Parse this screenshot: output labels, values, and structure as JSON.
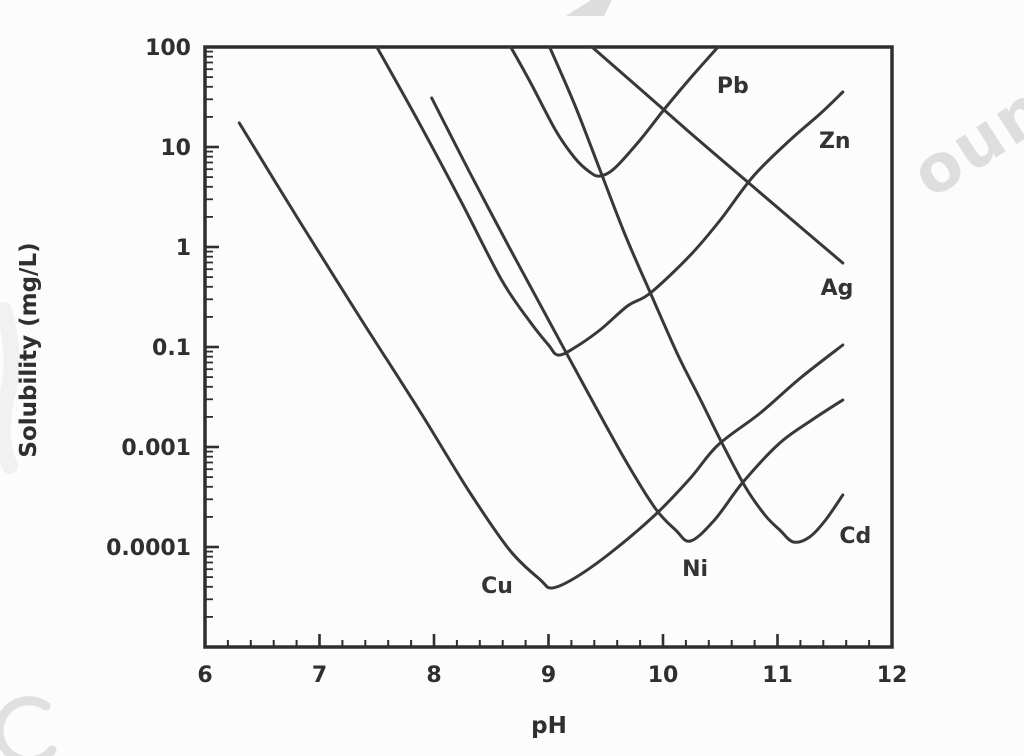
{
  "figure": {
    "background": "#fcfcfc",
    "line_color": "#383838",
    "axis_color": "#2f2f2f",
    "text_color": "#2f2f2f"
  },
  "watermark": {
    "text": "oun",
    "color": "rgba(70,70,70,0.16)",
    "description": "faint diagonal watermark letter fragments along image edges"
  },
  "chart_data": {
    "type": "line",
    "title": "",
    "xlabel": "pH",
    "ylabel": "Solubility (mg/L)",
    "grid": false,
    "legend_position": "inline-curve-labels",
    "x_axis": {
      "min": 6,
      "max": 12,
      "major_ticks": [
        6,
        7,
        8,
        9,
        10,
        11,
        12
      ],
      "tick_labels": [
        "6",
        "7",
        "8",
        "9",
        "10",
        "11",
        "12"
      ],
      "minor_tick_step": 0.2
    },
    "y_axis": {
      "scale": "log",
      "decades_shown": 6,
      "tick_labels": [
        "100",
        "10",
        "1",
        "0.1",
        "0.001",
        "0.0001"
      ],
      "bottom_decade_unlabeled": true,
      "note": "printed labels sit at successive decade positions from the top; log-spaced minor ticks in every decade"
    },
    "series": [
      {
        "name": "Cu",
        "label": "Cu",
        "label_pos": {
          "ph": 8.55,
          "decade": 5.38
        },
        "minimum": {
          "ph": 9.0,
          "solubility_mgL": 4e-05
        },
        "points_ph_decade": [
          [
            6.3,
            0.76
          ],
          [
            6.83,
            1.75
          ],
          [
            7.35,
            2.7
          ],
          [
            7.88,
            3.65
          ],
          [
            8.31,
            4.45
          ],
          [
            8.66,
            5.03
          ],
          [
            8.93,
            5.33
          ],
          [
            9.03,
            5.41
          ],
          [
            9.23,
            5.31
          ],
          [
            9.54,
            5.06
          ],
          [
            9.93,
            4.68
          ],
          [
            10.24,
            4.31
          ],
          [
            10.48,
            3.98
          ],
          [
            10.85,
            3.66
          ],
          [
            11.2,
            3.31
          ],
          [
            11.57,
            2.98
          ]
        ]
      },
      {
        "name": "Zn",
        "label": "Zn",
        "label_pos": {
          "ph": 11.5,
          "decade": 0.93
        },
        "minimum": {
          "ph": 9.1,
          "solubility_mgL": 0.085
        },
        "points_ph_decade": [
          [
            7.5,
            0.0
          ],
          [
            7.88,
            0.78
          ],
          [
            8.23,
            1.53
          ],
          [
            8.59,
            2.33
          ],
          [
            8.84,
            2.75
          ],
          [
            9.0,
            2.98
          ],
          [
            9.08,
            3.08
          ],
          [
            9.21,
            3.02
          ],
          [
            9.45,
            2.83
          ],
          [
            9.69,
            2.59
          ],
          [
            9.89,
            2.46
          ],
          [
            10.24,
            2.08
          ],
          [
            10.5,
            1.73
          ],
          [
            10.79,
            1.29
          ],
          [
            11.11,
            0.93
          ],
          [
            11.37,
            0.67
          ],
          [
            11.57,
            0.45
          ]
        ]
      },
      {
        "name": "Ni",
        "label": "Ni",
        "label_pos": {
          "ph": 10.28,
          "decade": 5.21
        },
        "minimum": {
          "ph": 10.25,
          "solubility_mgL": 0.00012
        },
        "points_ph_decade": [
          [
            7.98,
            0.51
          ],
          [
            8.31,
            1.25
          ],
          [
            8.66,
            2.01
          ],
          [
            9.01,
            2.75
          ],
          [
            9.36,
            3.49
          ],
          [
            9.67,
            4.13
          ],
          [
            9.93,
            4.61
          ],
          [
            10.11,
            4.83
          ],
          [
            10.24,
            4.94
          ],
          [
            10.45,
            4.73
          ],
          [
            10.7,
            4.35
          ],
          [
            11.02,
            3.96
          ],
          [
            11.3,
            3.73
          ],
          [
            11.57,
            3.53
          ]
        ]
      },
      {
        "name": "Pb",
        "label": "Pb",
        "label_pos": {
          "ph": 10.61,
          "decade": 0.38
        },
        "minimum": {
          "ph": 9.45,
          "solubility_mgL": 5
        },
        "points_ph_decade": [
          [
            8.67,
            0.0
          ],
          [
            8.84,
            0.35
          ],
          [
            9.06,
            0.83
          ],
          [
            9.23,
            1.11
          ],
          [
            9.36,
            1.25
          ],
          [
            9.45,
            1.29
          ],
          [
            9.58,
            1.21
          ],
          [
            9.8,
            0.93
          ],
          [
            10.02,
            0.61
          ],
          [
            10.24,
            0.31
          ],
          [
            10.48,
            0.0
          ]
        ]
      },
      {
        "name": "Ag",
        "label": "Ag",
        "label_pos": {
          "ph": 11.52,
          "decade": 2.4
        },
        "minimum": null,
        "points_ph_decade": [
          [
            9.38,
            0.0
          ],
          [
            9.89,
            0.51
          ],
          [
            10.32,
            0.94
          ],
          [
            10.79,
            1.4
          ],
          [
            11.2,
            1.8
          ],
          [
            11.57,
            2.16
          ]
        ]
      },
      {
        "name": "Cd",
        "label": "Cd",
        "label_pos": {
          "ph": 11.68,
          "decade": 4.88
        },
        "minimum": {
          "ph": 11.15,
          "solubility_mgL": 0.00011
        },
        "points_ph_decade": [
          [
            9.01,
            0.0
          ],
          [
            9.23,
            0.58
          ],
          [
            9.45,
            1.23
          ],
          [
            9.67,
            1.88
          ],
          [
            9.89,
            2.46
          ],
          [
            10.13,
            3.08
          ],
          [
            10.32,
            3.51
          ],
          [
            10.51,
            3.95
          ],
          [
            10.72,
            4.4
          ],
          [
            10.89,
            4.68
          ],
          [
            11.02,
            4.83
          ],
          [
            11.14,
            4.95
          ],
          [
            11.28,
            4.9
          ],
          [
            11.42,
            4.73
          ],
          [
            11.57,
            4.48
          ]
        ]
      }
    ]
  }
}
